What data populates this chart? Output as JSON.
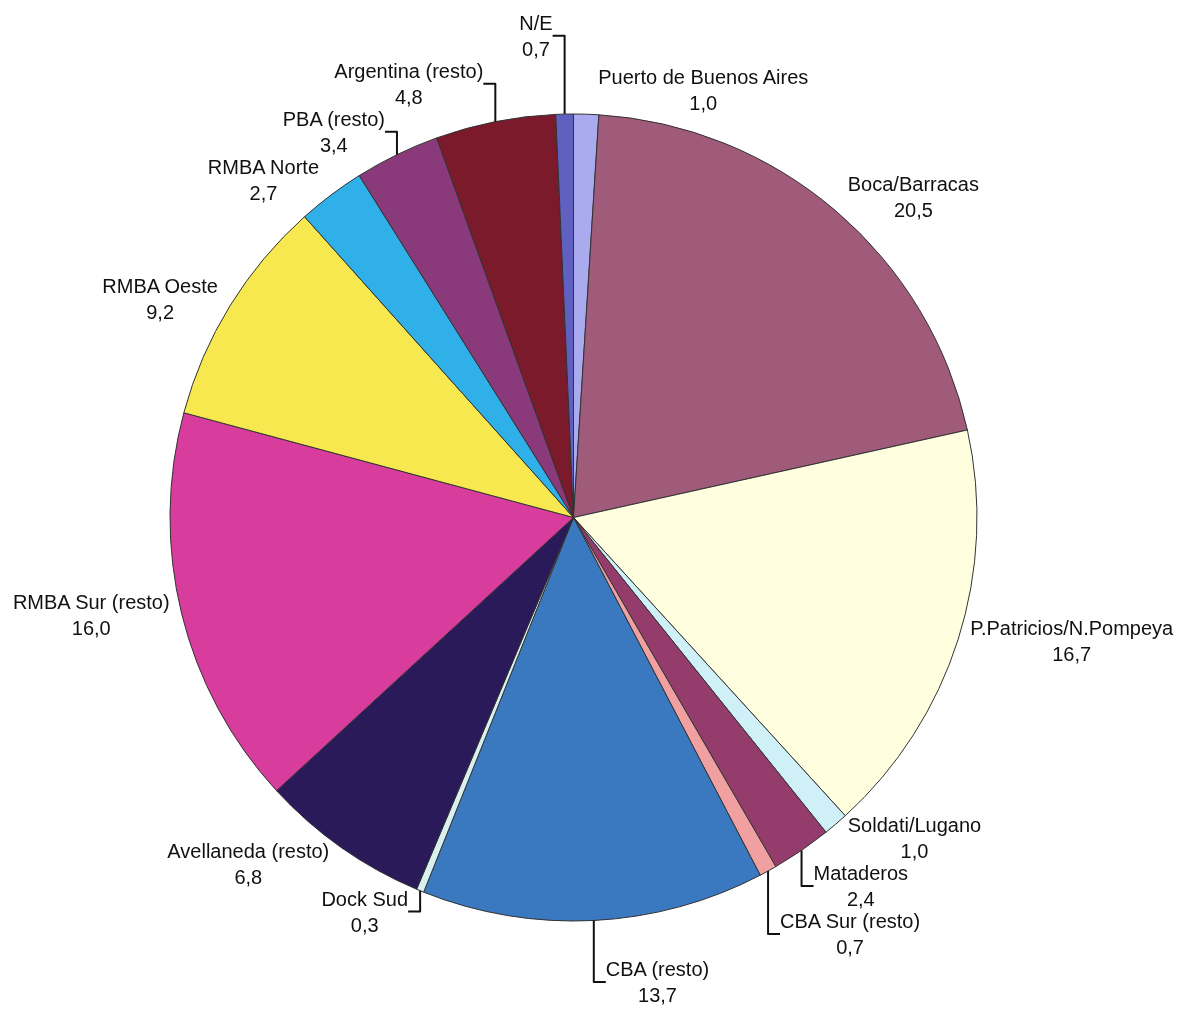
{
  "chart_data": {
    "type": "pie",
    "categories": [
      "Puerto de Buenos Aires",
      "Boca/Barracas",
      "P.Patricios/N.Pompeya",
      "Soldati/Lugano",
      "Mataderos",
      "CBA Sur (resto)",
      "CBA (resto)",
      "Dock Sud",
      "Avellaneda (resto)",
      "RMBA Sur (resto)",
      "RMBA Oeste",
      "RMBA Norte",
      "PBA (resto)",
      "Argentina (resto)",
      "N/E"
    ],
    "values": [
      1.0,
      20.5,
      16.7,
      1.0,
      2.4,
      0.7,
      13.7,
      0.3,
      6.8,
      16.0,
      9.2,
      2.7,
      3.4,
      4.8,
      0.7
    ],
    "value_labels": [
      "1,0",
      "20,5",
      "16,7",
      "1,0",
      "2,4",
      "0,7",
      "13,7",
      "0,3",
      "6,8",
      "16,0",
      "9,2",
      "2,7",
      "3,4",
      "4,8",
      "0,7"
    ],
    "colors": [
      "#aaaaee",
      "#a05a7a",
      "#ffffe0",
      "#d0f0f8",
      "#943c6c",
      "#f0a0a0",
      "#3a78c0",
      "#d8f0f0",
      "#2a1a5a",
      "#d83c9c",
      "#f8e850",
      "#30b0e8",
      "#8a3a7a",
      "#7a1a2a",
      "#6060c0"
    ],
    "legend": false
  }
}
